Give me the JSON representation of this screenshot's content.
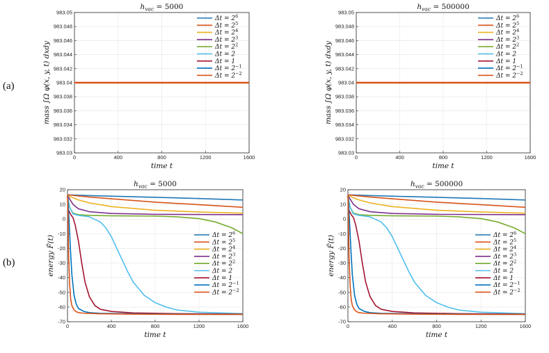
{
  "panel_labels": [
    "(a)",
    "(b)"
  ],
  "chart_data": [
    {
      "type": "line",
      "title": "h_vac = 5000",
      "title_parts": {
        "var": "h",
        "sub": "vac",
        "rest": " = 5000"
      },
      "xlabel": "time t",
      "ylabel": "mass ∫Ω φ(x, y, t) dxdy",
      "xlim": [
        0,
        1600
      ],
      "ylim": [
        983.03,
        983.05
      ],
      "xticks": [
        "0",
        "400",
        "800",
        "1200",
        "1600"
      ],
      "yticks": [
        "983.03",
        "983.032",
        "983.034",
        "983.036",
        "983.038",
        "983.04",
        "983.042",
        "983.044",
        "983.046",
        "983.048",
        "983.05"
      ],
      "legend_position": "top-right",
      "series": [
        {
          "name": "Δt = 2^6",
          "label": "Δt = 2",
          "exp": "6",
          "color": "#1f77b4",
          "x": [
            0,
            1600
          ],
          "y": [
            983.04,
            983.04
          ]
        },
        {
          "name": "Δt = 2^5",
          "label": "Δt = 2",
          "exp": "5",
          "color": "#d95319",
          "x": [
            0,
            1600
          ],
          "y": [
            983.04,
            983.04
          ]
        },
        {
          "name": "Δt = 2^4",
          "label": "Δt = 2",
          "exp": "4",
          "color": "#edb120",
          "x": [
            0,
            1600
          ],
          "y": [
            983.04,
            983.04
          ]
        },
        {
          "name": "Δt = 2^3",
          "label": "Δt = 2",
          "exp": "3",
          "color": "#7e2f8e",
          "x": [
            0,
            1600
          ],
          "y": [
            983.04,
            983.04
          ]
        },
        {
          "name": "Δt = 2^2",
          "label": "Δt = 2",
          "exp": "2",
          "color": "#77ac30",
          "x": [
            0,
            1600
          ],
          "y": [
            983.04,
            983.04
          ]
        },
        {
          "name": "Δt = 2",
          "label": "Δt = 2",
          "exp": "",
          "color": "#4dbeee",
          "x": [
            0,
            1600
          ],
          "y": [
            983.04,
            983.04
          ]
        },
        {
          "name": "Δt = 1",
          "label": "Δt = 1",
          "exp": "",
          "color": "#a2142f",
          "x": [
            0,
            1600
          ],
          "y": [
            983.04,
            983.04
          ]
        },
        {
          "name": "Δt = 2^-1",
          "label": "Δt = 2",
          "exp": "−1",
          "color": "#0072bd",
          "x": [
            0,
            1600
          ],
          "y": [
            983.04,
            983.04
          ]
        },
        {
          "name": "Δt = 2^-2",
          "label": "Δt = 2",
          "exp": "−2",
          "color": "#d95319",
          "x": [
            0,
            1600
          ],
          "y": [
            983.04,
            983.04
          ]
        }
      ]
    },
    {
      "type": "line",
      "title": "h_vac = 500000",
      "title_parts": {
        "var": "h",
        "sub": "vac",
        "rest": " = 500000"
      },
      "xlabel": "time t",
      "ylabel": "mass ∫Ω φ(x, y, t) dxdy",
      "xlim": [
        0,
        1600
      ],
      "ylim": [
        983.03,
        983.05
      ],
      "xticks": [
        "0",
        "400",
        "800",
        "1200",
        "1600"
      ],
      "yticks": [
        "983.03",
        "983.032",
        "983.034",
        "983.036",
        "983.038",
        "983.04",
        "983.042",
        "983.044",
        "983.046",
        "983.048",
        "983.05"
      ],
      "legend_position": "top-right",
      "series": [
        {
          "name": "Δt = 2^6",
          "label": "Δt = 2",
          "exp": "6",
          "color": "#1f77b4",
          "x": [
            0,
            1600
          ],
          "y": [
            983.04,
            983.04
          ]
        },
        {
          "name": "Δt = 2^5",
          "label": "Δt = 2",
          "exp": "5",
          "color": "#d95319",
          "x": [
            0,
            1600
          ],
          "y": [
            983.04,
            983.04
          ]
        },
        {
          "name": "Δt = 2^4",
          "label": "Δt = 2",
          "exp": "4",
          "color": "#edb120",
          "x": [
            0,
            1600
          ],
          "y": [
            983.04,
            983.04
          ]
        },
        {
          "name": "Δt = 2^3",
          "label": "Δt = 2",
          "exp": "3",
          "color": "#7e2f8e",
          "x": [
            0,
            1600
          ],
          "y": [
            983.04,
            983.04
          ]
        },
        {
          "name": "Δt = 2^2",
          "label": "Δt = 2",
          "exp": "2",
          "color": "#77ac30",
          "x": [
            0,
            1600
          ],
          "y": [
            983.04,
            983.04
          ]
        },
        {
          "name": "Δt = 2",
          "label": "Δt = 2",
          "exp": "",
          "color": "#4dbeee",
          "x": [
            0,
            1600
          ],
          "y": [
            983.04,
            983.04
          ]
        },
        {
          "name": "Δt = 1",
          "label": "Δt = 1",
          "exp": "",
          "color": "#a2142f",
          "x": [
            0,
            1600
          ],
          "y": [
            983.04,
            983.04
          ]
        },
        {
          "name": "Δt = 2^-1",
          "label": "Δt = 2",
          "exp": "−1",
          "color": "#0072bd",
          "x": [
            0,
            1600
          ],
          "y": [
            983.04,
            983.04
          ]
        },
        {
          "name": "Δt = 2^-2",
          "label": "Δt = 2",
          "exp": "−2",
          "color": "#d95319",
          "x": [
            0,
            1600
          ],
          "y": [
            983.04,
            983.04
          ]
        }
      ]
    },
    {
      "type": "line",
      "title": "h_vac = 5000",
      "title_parts": {
        "var": "h",
        "sub": "vac",
        "rest": " = 5000"
      },
      "xlabel": "time t",
      "ylabel": "energy F̃(t)",
      "xlim": [
        0,
        1600
      ],
      "ylim": [
        -70,
        20
      ],
      "xticks": [
        "0",
        "400",
        "800",
        "1200",
        "1600"
      ],
      "yticks": [
        "-70",
        "-60",
        "-50",
        "-40",
        "-30",
        "-20",
        "-10",
        "0",
        "10",
        "20"
      ],
      "legend_position": "bottom-right",
      "series": [
        {
          "name": "Δt = 2^6",
          "label": "Δt = 2",
          "exp": "6",
          "color": "#1f77b4",
          "x": [
            0,
            200,
            400,
            800,
            1200,
            1600
          ],
          "y": [
            16.5,
            16,
            15.6,
            14.8,
            14,
            13
          ]
        },
        {
          "name": "Δt = 2^5",
          "label": "Δt = 2",
          "exp": "5",
          "color": "#d95319",
          "x": [
            0,
            200,
            400,
            800,
            1200,
            1600
          ],
          "y": [
            16.5,
            15,
            13.8,
            11.5,
            9.8,
            8
          ]
        },
        {
          "name": "Δt = 2^4",
          "label": "Δt = 2",
          "exp": "4",
          "color": "#edb120",
          "x": [
            0,
            100,
            200,
            400,
            800,
            1200,
            1600
          ],
          "y": [
            16,
            13,
            11,
            8.5,
            6,
            4.8,
            4
          ]
        },
        {
          "name": "Δt = 2^3",
          "label": "Δt = 2",
          "exp": "3",
          "color": "#7e2f8e",
          "x": [
            0,
            50,
            100,
            200,
            400,
            800,
            1600
          ],
          "y": [
            16,
            10,
            7,
            5,
            3.8,
            3.2,
            3
          ]
        },
        {
          "name": "Δt = 2^2",
          "label": "Δt = 2",
          "exp": "2",
          "color": "#77ac30",
          "x": [
            0,
            20,
            50,
            100,
            200,
            400,
            800,
            1000,
            1200,
            1350,
            1500,
            1600
          ],
          "y": [
            16,
            8,
            4,
            3,
            2.5,
            2.2,
            2,
            1.5,
            0.3,
            -2,
            -6,
            -10
          ]
        },
        {
          "name": "Δt = 2",
          "label": "Δt = 2",
          "exp": "",
          "color": "#4dbeee",
          "x": [
            0,
            20,
            50,
            100,
            200,
            300,
            350,
            400,
            450,
            500,
            550,
            600,
            700,
            800,
            900,
            1000,
            1200,
            1400,
            1600
          ],
          "y": [
            16,
            8,
            3.5,
            2.5,
            1.5,
            -2,
            -6,
            -12,
            -20,
            -28,
            -36,
            -43,
            -52,
            -57,
            -60,
            -62,
            -63.5,
            -64,
            -64.5
          ]
        },
        {
          "name": "Δt = 1",
          "label": "Δt = 1",
          "exp": "",
          "color": "#a2142f",
          "x": [
            0,
            10,
            30,
            50,
            70,
            100,
            130,
            160,
            200,
            250,
            300,
            400,
            600,
            1000,
            1600
          ],
          "y": [
            16,
            6,
            3,
            1,
            -4,
            -15,
            -30,
            -43,
            -53,
            -59,
            -61.5,
            -63,
            -64,
            -64.5,
            -64.8
          ]
        },
        {
          "name": "Δt = 2^-1",
          "label": "Δt = 2",
          "exp": "−1",
          "color": "#0072bd",
          "x": [
            0,
            10,
            20,
            30,
            40,
            60,
            80,
            100,
            150,
            200,
            300,
            600,
            1000,
            1600
          ],
          "y": [
            16,
            5,
            -10,
            -25,
            -38,
            -52,
            -58,
            -61,
            -63,
            -63.8,
            -64.3,
            -64.6,
            -64.8,
            -65
          ]
        },
        {
          "name": "Δt = 2^-2",
          "label": "Δt = 2",
          "exp": "−2",
          "color": "#d95319",
          "x": [
            0,
            5,
            10,
            20,
            30,
            40,
            60,
            80,
            100,
            150,
            300,
            600,
            1000,
            1600
          ],
          "y": [
            16,
            0,
            -25,
            -45,
            -55,
            -59,
            -62,
            -63.2,
            -63.8,
            -64.2,
            -64.6,
            -64.8,
            -65,
            -65
          ]
        }
      ]
    },
    {
      "type": "line",
      "title": "h_vac = 500000",
      "title_parts": {
        "var": "h",
        "sub": "vac",
        "rest": " = 500000"
      },
      "xlabel": "time t",
      "ylabel": "energy F̃(t)",
      "xlim": [
        0,
        1600
      ],
      "ylim": [
        -70,
        20
      ],
      "xticks": [
        "0",
        "400",
        "800",
        "1200",
        "1600"
      ],
      "yticks": [
        "-70",
        "-60",
        "-50",
        "-40",
        "-30",
        "-20",
        "-10",
        "0",
        "10",
        "20"
      ],
      "legend_position": "bottom-right",
      "series": [
        {
          "name": "Δt = 2^6",
          "label": "Δt = 2",
          "exp": "6",
          "color": "#1f77b4",
          "x": [
            0,
            200,
            400,
            800,
            1200,
            1600
          ],
          "y": [
            16.5,
            16,
            15.6,
            14.8,
            14,
            13
          ]
        },
        {
          "name": "Δt = 2^5",
          "label": "Δt = 2",
          "exp": "5",
          "color": "#d95319",
          "x": [
            0,
            200,
            400,
            800,
            1200,
            1600
          ],
          "y": [
            16.5,
            15,
            13.8,
            11.5,
            9.8,
            8
          ]
        },
        {
          "name": "Δt = 2^4",
          "label": "Δt = 2",
          "exp": "4",
          "color": "#edb120",
          "x": [
            0,
            100,
            200,
            400,
            800,
            1200,
            1600
          ],
          "y": [
            16,
            13,
            11,
            8.5,
            6,
            4.8,
            4
          ]
        },
        {
          "name": "Δt = 2^3",
          "label": "Δt = 2",
          "exp": "3",
          "color": "#7e2f8e",
          "x": [
            0,
            50,
            100,
            200,
            400,
            800,
            1600
          ],
          "y": [
            16,
            10,
            7,
            5,
            3.8,
            3.2,
            3
          ]
        },
        {
          "name": "Δt = 2^2",
          "label": "Δt = 2",
          "exp": "2",
          "color": "#77ac30",
          "x": [
            0,
            20,
            50,
            100,
            200,
            400,
            800,
            1000,
            1200,
            1350,
            1500,
            1600
          ],
          "y": [
            16,
            8,
            4,
            3,
            2.5,
            2.2,
            2,
            1.5,
            0.3,
            -2,
            -6,
            -10
          ]
        },
        {
          "name": "Δt = 2",
          "label": "Δt = 2",
          "exp": "",
          "color": "#4dbeee",
          "x": [
            0,
            20,
            50,
            100,
            200,
            300,
            350,
            400,
            450,
            500,
            550,
            600,
            700,
            800,
            900,
            1000,
            1200,
            1400,
            1600
          ],
          "y": [
            16,
            8,
            3.5,
            2.5,
            1.5,
            -2,
            -6,
            -12,
            -20,
            -28,
            -36,
            -43,
            -52,
            -57,
            -60,
            -62,
            -63.5,
            -64,
            -64.5
          ]
        },
        {
          "name": "Δt = 1",
          "label": "Δt = 1",
          "exp": "",
          "color": "#a2142f",
          "x": [
            0,
            10,
            30,
            50,
            70,
            100,
            130,
            160,
            200,
            250,
            300,
            400,
            600,
            1000,
            1600
          ],
          "y": [
            16,
            6,
            3,
            1,
            -4,
            -15,
            -30,
            -43,
            -53,
            -59,
            -61.5,
            -63,
            -64,
            -64.5,
            -64.8
          ]
        },
        {
          "name": "Δt = 2^-1",
          "label": "Δt = 2",
          "exp": "−1",
          "color": "#0072bd",
          "x": [
            0,
            10,
            20,
            30,
            40,
            60,
            80,
            100,
            150,
            200,
            300,
            600,
            1000,
            1600
          ],
          "y": [
            16,
            5,
            -10,
            -25,
            -38,
            -52,
            -58,
            -61,
            -63,
            -63.8,
            -64.3,
            -64.6,
            -64.8,
            -65
          ]
        },
        {
          "name": "Δt = 2^-2",
          "label": "Δt = 2",
          "exp": "−2",
          "color": "#d95319",
          "x": [
            0,
            5,
            10,
            20,
            30,
            40,
            60,
            80,
            100,
            150,
            300,
            600,
            1000,
            1600
          ],
          "y": [
            16,
            0,
            -25,
            -45,
            -55,
            -59,
            -62,
            -63.2,
            -63.8,
            -64.2,
            -64.6,
            -64.8,
            -65,
            -65
          ]
        }
      ]
    }
  ]
}
